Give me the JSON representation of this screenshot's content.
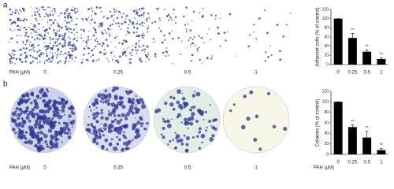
{
  "figure": {
    "panels": [
      {
        "label": "a",
        "dose_label": "PAH (μM)",
        "doses": [
          "0",
          "0.25",
          "0.5",
          "1"
        ]
      },
      {
        "label": "b",
        "dose_label": "PAH (μM)",
        "doses": [
          "0",
          "0.25",
          "0.5",
          "1"
        ]
      }
    ]
  },
  "chart_data": [
    {
      "type": "bar",
      "ylabel": "Adherent cells (% of control)",
      "categories": [
        "0",
        "0.25",
        "0.5",
        "1"
      ],
      "values": [
        100,
        58,
        28,
        12
      ],
      "errors": [
        0,
        10,
        4,
        3
      ],
      "significance": [
        null,
        "**",
        "**",
        "**"
      ],
      "color": "#000000",
      "ylim": [
        0,
        120
      ],
      "yticks": [
        0,
        20,
        40,
        60,
        80,
        100,
        120
      ]
    },
    {
      "type": "bar",
      "ylabel": "Colonies (% of control)",
      "xlabel": "PAH (μM)",
      "categories": [
        "0",
        "0.25",
        "0.5",
        "1"
      ],
      "values": [
        100,
        52,
        32,
        8
      ],
      "errors": [
        0,
        4,
        12,
        3
      ],
      "significance": [
        null,
        "**",
        "**",
        "**"
      ],
      "color": "#000000",
      "ylim": [
        0,
        120
      ],
      "yticks": [
        0,
        20,
        40,
        60,
        80,
        100,
        120
      ]
    }
  ]
}
